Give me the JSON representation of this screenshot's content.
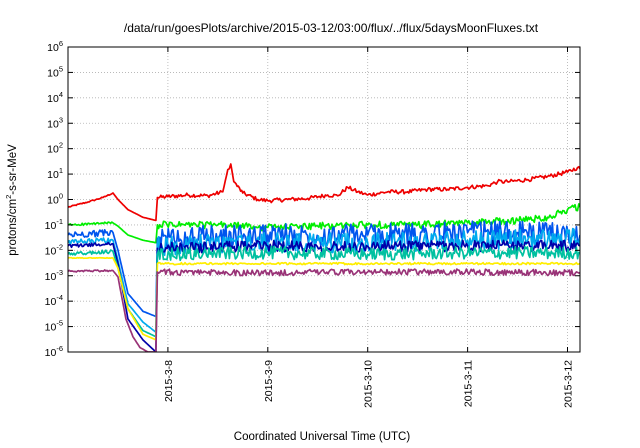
{
  "chart_data": {
    "type": "line",
    "title": "/data/run/goesPlots/archive/2015-03-12/03:00/flux/../flux/5daysMoonFluxes.txt",
    "xlabel": "Coordinated Universal Time (UTC)",
    "ylabel": {
      "prefix": "protons/cm",
      "exponent": "2",
      "suffix": "-s-sr-MeV"
    },
    "y_scale": "log",
    "ylim": [
      1e-06,
      1000000.0
    ],
    "y_ticks": [
      {
        "value": 1e-06,
        "base": "10",
        "exp": "-6"
      },
      {
        "value": 1e-05,
        "base": "10",
        "exp": "-5"
      },
      {
        "value": 0.0001,
        "base": "10",
        "exp": "-4"
      },
      {
        "value": 0.001,
        "base": "10",
        "exp": "-3"
      },
      {
        "value": 0.01,
        "base": "10",
        "exp": "-2"
      },
      {
        "value": 0.1,
        "base": "10",
        "exp": "-1"
      },
      {
        "value": 1,
        "base": "10",
        "exp": "0"
      },
      {
        "value": 10,
        "base": "10",
        "exp": "1"
      },
      {
        "value": 100,
        "base": "10",
        "exp": "2"
      },
      {
        "value": 1000,
        "base": "10",
        "exp": "3"
      },
      {
        "value": 10000,
        "base": "10",
        "exp": "4"
      },
      {
        "value": 100000,
        "base": "10",
        "exp": "5"
      },
      {
        "value": 1000000,
        "base": "10",
        "exp": "6"
      }
    ],
    "x_unit": "days since 2015-03-07 00:00 UTC",
    "xlim": [
      0,
      5.125
    ],
    "x_ticks": [
      {
        "value": 1,
        "label": "2015-3-8"
      },
      {
        "value": 2,
        "label": "2015-3-9"
      },
      {
        "value": 3,
        "label": "2015-3-10"
      },
      {
        "value": 4,
        "label": "2015-3-11"
      },
      {
        "value": 5,
        "label": "2015-3-12"
      }
    ],
    "grid": true,
    "series": [
      {
        "key": "red",
        "color": "#ee0000",
        "jitter": 0.08,
        "points": [
          [
            0,
            0.5
          ],
          [
            0.2,
            0.8
          ],
          [
            0.35,
            1.2
          ],
          [
            0.45,
            1.8
          ],
          [
            0.5,
            1.0
          ],
          [
            0.6,
            0.4
          ],
          [
            0.75,
            0.2
          ],
          [
            0.88,
            0.15
          ],
          [
            0.895,
            1.2
          ],
          [
            1.0,
            1.3
          ],
          [
            1.2,
            1.5
          ],
          [
            1.4,
            1.4
          ],
          [
            1.55,
            2.0
          ],
          [
            1.6,
            15
          ],
          [
            1.63,
            25
          ],
          [
            1.66,
            5
          ],
          [
            1.75,
            1.8
          ],
          [
            1.9,
            1.0
          ],
          [
            2.0,
            0.9
          ],
          [
            2.2,
            1.0
          ],
          [
            2.4,
            1.1
          ],
          [
            2.6,
            1.5
          ],
          [
            2.7,
            1.4
          ],
          [
            2.8,
            3.0
          ],
          [
            2.9,
            2.0
          ],
          [
            3.0,
            1.5
          ],
          [
            3.2,
            2.0
          ],
          [
            3.4,
            2.0
          ],
          [
            3.6,
            2.5
          ],
          [
            3.8,
            2.5
          ],
          [
            4.0,
            3.0
          ],
          [
            4.2,
            3.5
          ],
          [
            4.3,
            5.0
          ],
          [
            4.4,
            5.0
          ],
          [
            4.6,
            6.0
          ],
          [
            4.8,
            8.0
          ],
          [
            5.0,
            12
          ],
          [
            5.1,
            18
          ],
          [
            5.125,
            16
          ]
        ]
      },
      {
        "key": "green",
        "color": "#00ee00",
        "jitter": 0.14,
        "points": [
          [
            0,
            0.1
          ],
          [
            0.45,
            0.12
          ],
          [
            0.5,
            0.09
          ],
          [
            0.6,
            0.04
          ],
          [
            0.75,
            0.025
          ],
          [
            0.88,
            0.02
          ],
          [
            0.895,
            0.1
          ],
          [
            1.5,
            0.1
          ],
          [
            2.0,
            0.08
          ],
          [
            2.5,
            0.09
          ],
          [
            3.0,
            0.1
          ],
          [
            3.5,
            0.1
          ],
          [
            4.0,
            0.12
          ],
          [
            4.5,
            0.15
          ],
          [
            4.8,
            0.2
          ],
          [
            5.0,
            0.4
          ],
          [
            5.125,
            0.5
          ]
        ]
      },
      {
        "key": "blue",
        "color": "#0055ee",
        "jitter": 0.45,
        "points": [
          [
            0,
            0.04
          ],
          [
            0.45,
            0.05
          ],
          [
            0.5,
            0.01
          ],
          [
            0.6,
            0.0002
          ],
          [
            0.75,
            4e-05
          ],
          [
            0.88,
            2.5e-05
          ],
          [
            0.895,
            0.03
          ],
          [
            2.0,
            0.04
          ],
          [
            3.0,
            0.04
          ],
          [
            4.0,
            0.05
          ],
          [
            4.5,
            0.05
          ],
          [
            5.125,
            0.04
          ]
        ]
      },
      {
        "key": "cyan",
        "color": "#00aaee",
        "jitter": 0.4,
        "points": [
          [
            0,
            0.02
          ],
          [
            0.45,
            0.025
          ],
          [
            0.5,
            0.004
          ],
          [
            0.6,
            8e-05
          ],
          [
            0.75,
            1.5e-05
          ],
          [
            0.88,
            6e-06
          ],
          [
            0.895,
            0.015
          ],
          [
            2.0,
            0.02
          ],
          [
            3.0,
            0.02
          ],
          [
            4.0,
            0.025
          ],
          [
            5.125,
            0.03
          ]
        ]
      },
      {
        "key": "navy",
        "color": "#0000aa",
        "jitter": 0.22,
        "points": [
          [
            0,
            0.015
          ],
          [
            0.45,
            0.018
          ],
          [
            0.5,
            0.003
          ],
          [
            0.6,
            2e-05
          ],
          [
            0.75,
            3e-06
          ],
          [
            0.88,
            1e-06
          ],
          [
            0.895,
            0.012
          ],
          [
            2.0,
            0.015
          ],
          [
            3.0,
            0.014
          ],
          [
            4.0,
            0.015
          ],
          [
            5.125,
            0.015
          ]
        ]
      },
      {
        "key": "teal",
        "color": "#00c0a0",
        "jitter": 0.25,
        "points": [
          [
            0,
            0.007
          ],
          [
            0.45,
            0.009
          ],
          [
            0.5,
            0.002
          ],
          [
            0.6,
            5e-05
          ],
          [
            0.75,
            7e-06
          ],
          [
            0.88,
            4e-06
          ],
          [
            0.895,
            0.007
          ],
          [
            2.0,
            0.008
          ],
          [
            3.0,
            0.007
          ],
          [
            4.0,
            0.008
          ],
          [
            5.125,
            0.008
          ]
        ]
      },
      {
        "key": "yellow",
        "color": "#ffee00",
        "jitter": 0.04,
        "points": [
          [
            0,
            0.005
          ],
          [
            0.45,
            0.005
          ],
          [
            0.5,
            0.002
          ],
          [
            0.6,
            5e-05
          ],
          [
            0.75,
            5e-06
          ],
          [
            0.88,
            3e-06
          ],
          [
            0.895,
            0.003
          ],
          [
            2.0,
            0.003
          ],
          [
            3.0,
            0.003
          ],
          [
            4.0,
            0.003
          ],
          [
            5.125,
            0.003
          ]
        ]
      },
      {
        "key": "purple",
        "color": "#993377",
        "jitter": 0.12,
        "points": [
          [
            0,
            0.0015
          ],
          [
            0.45,
            0.0016
          ],
          [
            0.5,
            0.0009
          ],
          [
            0.58,
            2e-05
          ],
          [
            0.65,
            4e-06
          ],
          [
            0.72,
            1.5e-06
          ],
          [
            0.8,
            1e-06
          ],
          [
            0.88,
            1e-06
          ],
          [
            0.895,
            0.0014
          ],
          [
            2.0,
            0.0013
          ],
          [
            3.0,
            0.0014
          ],
          [
            4.0,
            0.0014
          ],
          [
            5.125,
            0.0013
          ]
        ]
      }
    ]
  }
}
